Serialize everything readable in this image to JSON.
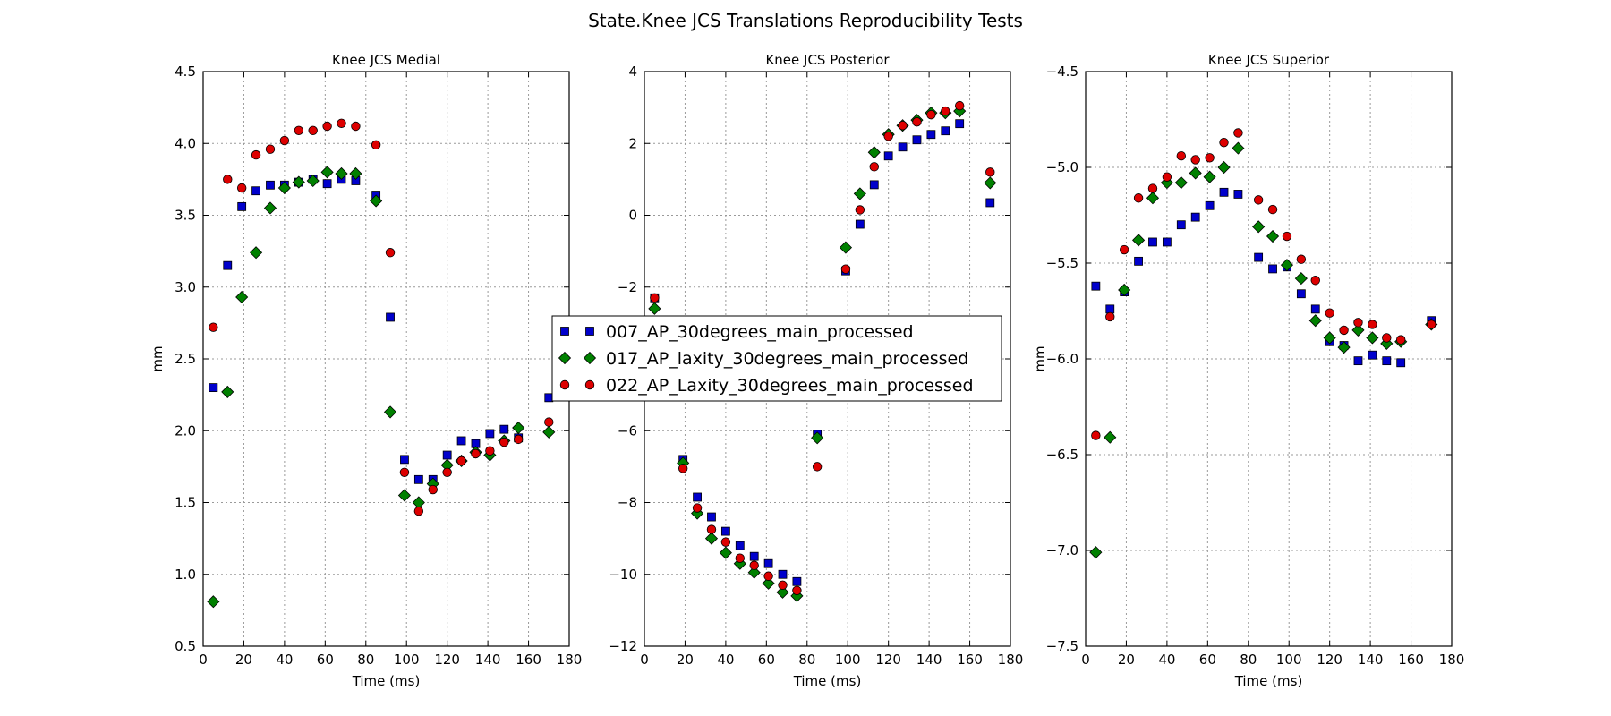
{
  "figure": {
    "title": "State.Knee JCS Translations Reproducibility Tests"
  },
  "legend": {
    "placement": "center",
    "entries": [
      {
        "label": "007_AP_30degrees_main_processed",
        "marker": "square",
        "color": "#0000cc"
      },
      {
        "label": "017_AP_laxity_30degrees_main_processed",
        "marker": "diamond",
        "color": "#008000"
      },
      {
        "label": "022_AP_Laxity_30degrees_main_processed",
        "marker": "circle",
        "color": "#dd0000"
      }
    ]
  },
  "chart_data": [
    {
      "type": "scatter",
      "title": "Knee JCS Medial",
      "xlabel": "Time (ms)",
      "ylabel": "mm",
      "xlim": [
        0,
        180
      ],
      "ylim": [
        0.5,
        4.5
      ],
      "xticks": [
        "0",
        "20",
        "40",
        "60",
        "80",
        "100",
        "120",
        "140",
        "160",
        "180"
      ],
      "yticks": [
        "0.5",
        "1.0",
        "1.5",
        "2.0",
        "2.5",
        "3.0",
        "3.5",
        "4.0",
        "4.5"
      ],
      "grid": true,
      "series": [
        {
          "name": "007_AP_30degrees_main_processed",
          "points": [
            [
              5,
              2.3
            ],
            [
              12,
              3.15
            ],
            [
              19,
              3.56
            ],
            [
              26,
              3.67
            ],
            [
              33,
              3.71
            ],
            [
              40,
              3.71
            ],
            [
              47,
              3.73
            ],
            [
              54,
              3.75
            ],
            [
              61,
              3.72
            ],
            [
              68,
              3.75
            ],
            [
              75,
              3.74
            ],
            [
              85,
              3.64
            ],
            [
              92,
              2.79
            ],
            [
              99,
              1.8
            ],
            [
              106,
              1.66
            ],
            [
              113,
              1.66
            ],
            [
              120,
              1.83
            ],
            [
              127,
              1.93
            ],
            [
              134,
              1.91
            ],
            [
              141,
              1.98
            ],
            [
              148,
              2.01
            ],
            [
              155,
              1.95
            ],
            [
              170,
              2.23
            ]
          ]
        },
        {
          "name": "017_AP_laxity_30degrees_main_processed",
          "points": [
            [
              5,
              0.81
            ],
            [
              12,
              2.27
            ],
            [
              19,
              2.93
            ],
            [
              26,
              3.24
            ],
            [
              33,
              3.55
            ],
            [
              40,
              3.69
            ],
            [
              47,
              3.73
            ],
            [
              54,
              3.74
            ],
            [
              61,
              3.8
            ],
            [
              68,
              3.79
            ],
            [
              75,
              3.79
            ],
            [
              85,
              3.6
            ],
            [
              92,
              2.13
            ],
            [
              99,
              1.55
            ],
            [
              106,
              1.5
            ],
            [
              113,
              1.63
            ],
            [
              120,
              1.76
            ],
            [
              127,
              1.79
            ],
            [
              134,
              1.85
            ],
            [
              141,
              1.83
            ],
            [
              148,
              1.93
            ],
            [
              155,
              2.02
            ],
            [
              170,
              1.99
            ]
          ]
        },
        {
          "name": "022_AP_Laxity_30degrees_main_processed",
          "points": [
            [
              5,
              2.72
            ],
            [
              12,
              3.75
            ],
            [
              19,
              3.69
            ],
            [
              26,
              3.92
            ],
            [
              33,
              3.96
            ],
            [
              40,
              4.02
            ],
            [
              47,
              4.09
            ],
            [
              54,
              4.09
            ],
            [
              61,
              4.12
            ],
            [
              68,
              4.14
            ],
            [
              75,
              4.12
            ],
            [
              85,
              3.99
            ],
            [
              92,
              3.24
            ],
            [
              99,
              1.71
            ],
            [
              106,
              1.44
            ],
            [
              113,
              1.59
            ],
            [
              120,
              1.71
            ],
            [
              127,
              1.79
            ],
            [
              134,
              1.84
            ],
            [
              141,
              1.86
            ],
            [
              148,
              1.92
            ],
            [
              155,
              1.94
            ],
            [
              170,
              2.06
            ]
          ]
        }
      ]
    },
    {
      "type": "scatter",
      "title": "Knee JCS Posterior",
      "xlabel": "Time (ms)",
      "ylabel": "",
      "xlim": [
        0,
        180
      ],
      "ylim": [
        -12,
        4
      ],
      "xticks": [
        "0",
        "20",
        "40",
        "60",
        "80",
        "100",
        "120",
        "140",
        "160",
        "180"
      ],
      "yticks": [
        "−12",
        "−10",
        "−8",
        "−6",
        "−4",
        "−2",
        "0",
        "2",
        "4"
      ],
      "grid": true,
      "series": [
        {
          "name": "007_AP_30degrees_main_processed",
          "points": [
            [
              5,
              -2.3
            ],
            [
              19,
              -6.8
            ],
            [
              26,
              -7.85
            ],
            [
              33,
              -8.4
            ],
            [
              40,
              -8.8
            ],
            [
              47,
              -9.2
            ],
            [
              54,
              -9.5
            ],
            [
              61,
              -9.7
            ],
            [
              68,
              -10.0
            ],
            [
              75,
              -10.2
            ],
            [
              85,
              -6.1
            ],
            [
              99,
              -1.55
            ],
            [
              106,
              -0.25
            ],
            [
              113,
              0.85
            ],
            [
              120,
              1.65
            ],
            [
              127,
              1.9
            ],
            [
              134,
              2.1
            ],
            [
              141,
              2.25
            ],
            [
              148,
              2.35
            ],
            [
              155,
              2.55
            ],
            [
              170,
              0.35
            ]
          ]
        },
        {
          "name": "017_AP_laxity_30degrees_main_processed",
          "points": [
            [
              5,
              -2.6
            ],
            [
              19,
              -6.9
            ],
            [
              26,
              -8.3
            ],
            [
              33,
              -9.0
            ],
            [
              40,
              -9.4
            ],
            [
              47,
              -9.7
            ],
            [
              54,
              -9.95
            ],
            [
              61,
              -10.25
            ],
            [
              68,
              -10.5
            ],
            [
              75,
              -10.6
            ],
            [
              85,
              -6.2
            ],
            [
              99,
              -0.9
            ],
            [
              106,
              0.6
            ],
            [
              113,
              1.75
            ],
            [
              120,
              2.25
            ],
            [
              127,
              2.5
            ],
            [
              134,
              2.65
            ],
            [
              141,
              2.85
            ],
            [
              148,
              2.85
            ],
            [
              155,
              2.9
            ],
            [
              170,
              0.9
            ]
          ]
        },
        {
          "name": "022_AP_Laxity_30degrees_main_processed",
          "points": [
            [
              5,
              -2.3
            ],
            [
              19,
              -7.05
            ],
            [
              26,
              -8.15
            ],
            [
              33,
              -8.75
            ],
            [
              40,
              -9.1
            ],
            [
              47,
              -9.55
            ],
            [
              54,
              -9.75
            ],
            [
              61,
              -10.05
            ],
            [
              68,
              -10.3
            ],
            [
              75,
              -10.45
            ],
            [
              85,
              -7.0
            ],
            [
              99,
              -1.5
            ],
            [
              106,
              0.15
            ],
            [
              113,
              1.35
            ],
            [
              120,
              2.2
            ],
            [
              127,
              2.5
            ],
            [
              134,
              2.6
            ],
            [
              141,
              2.8
            ],
            [
              148,
              2.9
            ],
            [
              155,
              3.05
            ],
            [
              170,
              1.2
            ]
          ]
        }
      ]
    },
    {
      "type": "scatter",
      "title": "Knee JCS Superior",
      "xlabel": "Time (ms)",
      "ylabel": "mm",
      "xlim": [
        0,
        180
      ],
      "ylim": [
        -7.5,
        -4.5
      ],
      "xticks": [
        "0",
        "20",
        "40",
        "60",
        "80",
        "100",
        "120",
        "140",
        "160",
        "180"
      ],
      "yticks": [
        "−7.5",
        "−7.0",
        "−6.5",
        "−6.0",
        "−5.5",
        "−5.0",
        "−4.5"
      ],
      "grid": true,
      "series": [
        {
          "name": "007_AP_30degrees_main_processed",
          "points": [
            [
              5,
              -5.62
            ],
            [
              12,
              -5.74
            ],
            [
              19,
              -5.65
            ],
            [
              26,
              -5.49
            ],
            [
              33,
              -5.39
            ],
            [
              40,
              -5.39
            ],
            [
              47,
              -5.3
            ],
            [
              54,
              -5.26
            ],
            [
              61,
              -5.2
            ],
            [
              68,
              -5.13
            ],
            [
              75,
              -5.14
            ],
            [
              85,
              -5.47
            ],
            [
              92,
              -5.53
            ],
            [
              99,
              -5.52
            ],
            [
              106,
              -5.66
            ],
            [
              113,
              -5.74
            ],
            [
              120,
              -5.91
            ],
            [
              127,
              -5.93
            ],
            [
              134,
              -6.01
            ],
            [
              141,
              -5.98
            ],
            [
              148,
              -6.01
            ],
            [
              155,
              -6.02
            ],
            [
              170,
              -5.8
            ]
          ]
        },
        {
          "name": "017_AP_laxity_30degrees_main_processed",
          "points": [
            [
              5,
              -7.01
            ],
            [
              12,
              -6.41
            ],
            [
              19,
              -5.64
            ],
            [
              26,
              -5.38
            ],
            [
              33,
              -5.16
            ],
            [
              40,
              -5.08
            ],
            [
              47,
              -5.08
            ],
            [
              54,
              -5.03
            ],
            [
              61,
              -5.05
            ],
            [
              68,
              -5.0
            ],
            [
              75,
              -4.9
            ],
            [
              85,
              -5.31
            ],
            [
              92,
              -5.36
            ],
            [
              99,
              -5.51
            ],
            [
              106,
              -5.58
            ],
            [
              113,
              -5.8
            ],
            [
              120,
              -5.89
            ],
            [
              127,
              -5.94
            ],
            [
              134,
              -5.85
            ],
            [
              141,
              -5.89
            ],
            [
              148,
              -5.92
            ],
            [
              155,
              -5.91
            ],
            [
              170,
              -5.82
            ]
          ]
        },
        {
          "name": "022_AP_Laxity_30degrees_main_processed",
          "points": [
            [
              5,
              -6.4
            ],
            [
              12,
              -5.78
            ],
            [
              19,
              -5.43
            ],
            [
              26,
              -5.16
            ],
            [
              33,
              -5.11
            ],
            [
              40,
              -5.05
            ],
            [
              47,
              -4.94
            ],
            [
              54,
              -4.96
            ],
            [
              61,
              -4.95
            ],
            [
              68,
              -4.87
            ],
            [
              75,
              -4.82
            ],
            [
              85,
              -5.17
            ],
            [
              92,
              -5.22
            ],
            [
              99,
              -5.36
            ],
            [
              106,
              -5.48
            ],
            [
              113,
              -5.59
            ],
            [
              120,
              -5.76
            ],
            [
              127,
              -5.85
            ],
            [
              134,
              -5.81
            ],
            [
              141,
              -5.82
            ],
            [
              148,
              -5.89
            ],
            [
              155,
              -5.9
            ],
            [
              170,
              -5.82
            ]
          ]
        }
      ]
    }
  ]
}
